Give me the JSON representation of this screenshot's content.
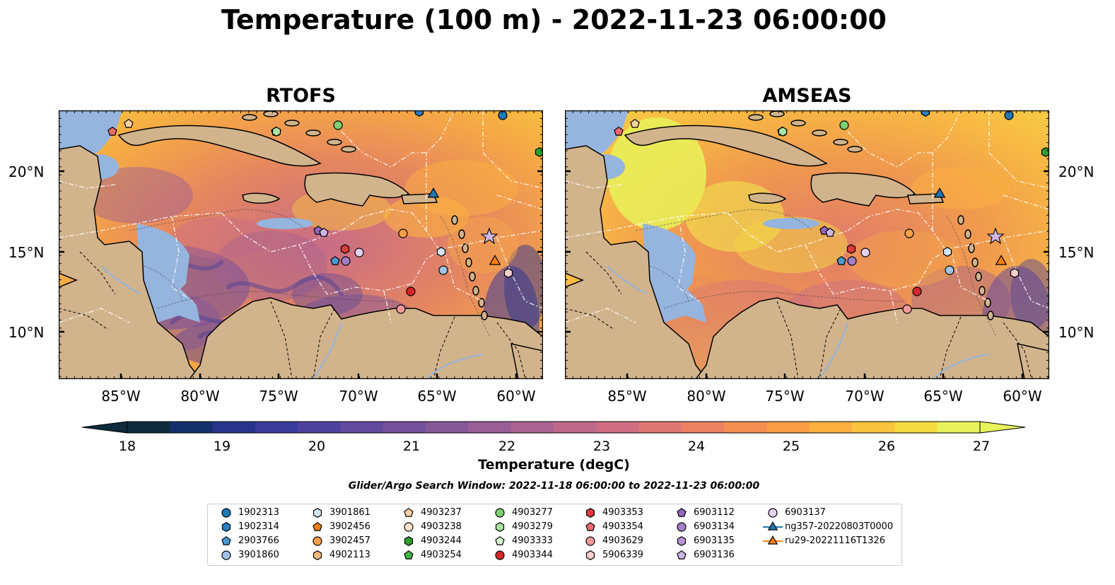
{
  "title": "Temperature (100 m) - 2022-11-23 06:00:00",
  "panels": [
    {
      "title": "RTOFS"
    },
    {
      "title": "AMSEAS"
    }
  ],
  "lat_labels": [
    "20°N",
    "15°N",
    "10°N"
  ],
  "lon_labels": [
    "85°W",
    "80°W",
    "75°W",
    "70°W",
    "65°W",
    "60°W"
  ],
  "colorbar": {
    "label": "Temperature (degC)",
    "ticks": [
      "18",
      "19",
      "20",
      "21",
      "22",
      "23",
      "24",
      "25",
      "26",
      "27"
    ],
    "min": 18,
    "max": 27,
    "step": 0.5,
    "colormap": "thermal",
    "colors": [
      "#0d2b3c",
      "#132f6a",
      "#26348a",
      "#393a9a",
      "#4d419d",
      "#624a9d",
      "#75519b",
      "#875998",
      "#995e95",
      "#ab6391",
      "#bd698b",
      "#cf6e82",
      "#de7774",
      "#eb8162",
      "#f48e52",
      "#f99d46",
      "#fbaf3f",
      "#f8c43d",
      "#f4db3f",
      "#e8f25a"
    ]
  },
  "search_window": "Glider/Argo Search Window: 2022-11-18 06:00:00 to 2022-11-23 06:00:00",
  "map_colors": {
    "land": "#d2b48c",
    "shallow_water": "#95b4de"
  },
  "legend": [
    {
      "label": "1902313",
      "marker": "circle",
      "color": "#1f77b4"
    },
    {
      "label": "1902314",
      "marker": "hexagon",
      "color": "#2a80c2"
    },
    {
      "label": "2903766",
      "marker": "pentagon",
      "color": "#4a98d0"
    },
    {
      "label": "3901860",
      "marker": "circle",
      "color": "#9ec3e6"
    },
    {
      "label": "3901861",
      "marker": "hexagon",
      "color": "#d2e6f6"
    },
    {
      "label": "3902456",
      "marker": "pentagon",
      "color": "#f07f0e"
    },
    {
      "label": "3902457",
      "marker": "circle",
      "color": "#f5a047"
    },
    {
      "label": "4902113",
      "marker": "hexagon",
      "color": "#f9bb7c"
    },
    {
      "label": "4903237",
      "marker": "pentagon",
      "color": "#fcd0a0"
    },
    {
      "label": "4903238",
      "marker": "circle",
      "color": "#fde2c8"
    },
    {
      "label": "4903244",
      "marker": "hexagon",
      "color": "#2ca02c"
    },
    {
      "label": "4903254",
      "marker": "pentagon",
      "color": "#44b444"
    },
    {
      "label": "4903277",
      "marker": "circle",
      "color": "#7dcf6f"
    },
    {
      "label": "4903279",
      "marker": "hexagon",
      "color": "#aae3a0"
    },
    {
      "label": "4903333",
      "marker": "pentagon",
      "color": "#d6f5d0"
    },
    {
      "label": "4903344",
      "marker": "circle",
      "color": "#d62728"
    },
    {
      "label": "4903353",
      "marker": "hexagon",
      "color": "#dc3b3c"
    },
    {
      "label": "4903354",
      "marker": "pentagon",
      "color": "#ea6b6c"
    },
    {
      "label": "4903629",
      "marker": "circle",
      "color": "#f3999a"
    },
    {
      "label": "5906339",
      "marker": "hexagon",
      "color": "#fbd0cf"
    },
    {
      "label": "6903112",
      "marker": "pentagon",
      "color": "#9467bd"
    },
    {
      "label": "6903134",
      "marker": "circle",
      "color": "#a27fc8"
    },
    {
      "label": "6903135",
      "marker": "hexagon",
      "color": "#b595d6"
    },
    {
      "label": "6903136",
      "marker": "pentagon",
      "color": "#cdb5e6"
    },
    {
      "label": "6903137",
      "marker": "circle",
      "color": "#e3d2f3"
    },
    {
      "label": "ng357-20220803T0000",
      "marker": "triangle-line",
      "color": "#1f77b4"
    },
    {
      "label": "ru29-20221116T1326",
      "marker": "triangle-line",
      "color": "#ff7f0e"
    }
  ]
}
